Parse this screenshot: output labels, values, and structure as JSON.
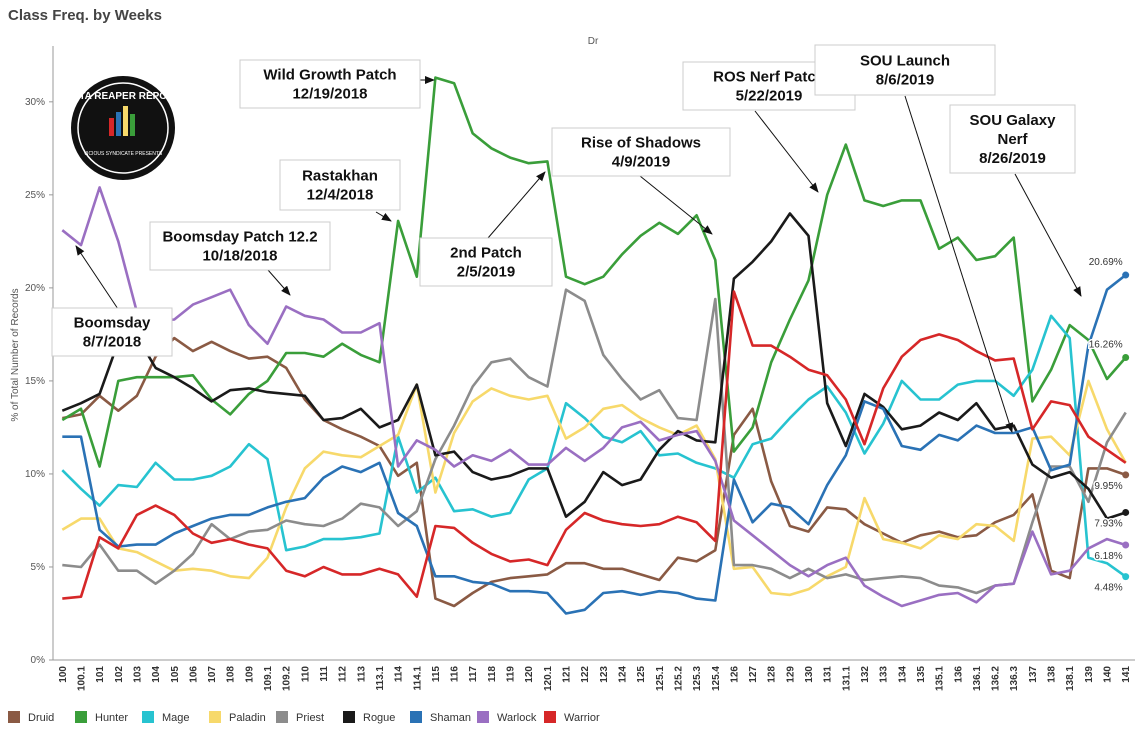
{
  "chart_data": {
    "type": "line",
    "title": "Class Freq. by Weeks",
    "column_header": "Dr",
    "y_label": "% of Total Number of Records",
    "logo_text": "DATA REAPER REPORT",
    "logo_subtext": "VICIOUS SYNDICATE PRESENTS",
    "grid": false,
    "legend": "bottom",
    "categories": [
      "100",
      "100.1",
      "101",
      "102",
      "103",
      "104",
      "105",
      "106",
      "107",
      "108",
      "109",
      "109.1",
      "109.2",
      "110",
      "111",
      "112",
      "113",
      "113.1",
      "114",
      "114.1",
      "115",
      "116",
      "117",
      "118",
      "119",
      "120",
      "120.1",
      "121",
      "122",
      "123",
      "124",
      "125",
      "125.1",
      "125.2",
      "125.3",
      "125.4",
      "126",
      "127",
      "128",
      "129",
      "130",
      "131",
      "131.1",
      "132",
      "133",
      "134",
      "135",
      "135.1",
      "136",
      "136.1",
      "136.2",
      "136.3",
      "137",
      "138",
      "138.1",
      "139",
      "140",
      "141"
    ],
    "ylim": [
      0,
      33
    ],
    "yticks": [
      {
        "value": 0,
        "label": "0%"
      },
      {
        "value": 5,
        "label": "5%"
      },
      {
        "value": 10,
        "label": "10%"
      },
      {
        "value": 15,
        "label": "15%"
      },
      {
        "value": 20,
        "label": "20%"
      },
      {
        "value": 25,
        "label": "25%"
      },
      {
        "value": 30,
        "label": "30%"
      }
    ],
    "annotations": [
      {
        "lines": [
          "Wild Growth Patch",
          "12/19/2018"
        ]
      },
      {
        "lines": [
          "Boomsday Patch 12.2",
          "10/18/2018"
        ]
      },
      {
        "lines": [
          "Rastakhan",
          "12/4/2018"
        ]
      },
      {
        "lines": [
          "Boomsday",
          "8/7/2018"
        ]
      },
      {
        "lines": [
          "2nd Patch",
          "2/5/2019"
        ]
      },
      {
        "lines": [
          "Rise of Shadows",
          "4/9/2019"
        ]
      },
      {
        "lines": [
          "ROS Nerf Patch",
          "5/22/2019"
        ]
      },
      {
        "lines": [
          "SOU Launch",
          "8/6/2019"
        ]
      },
      {
        "lines": [
          "SOU Galaxy",
          "Nerf",
          "8/26/2019"
        ]
      }
    ],
    "series": [
      {
        "name": "Druid",
        "color": "#8a5a44",
        "values": [
          13.0,
          13.2,
          14.2,
          13.4,
          14.2,
          16.3,
          17.3,
          16.6,
          17.1,
          16.6,
          16.2,
          16.3,
          15.7,
          14.0,
          12.9,
          12.4,
          12.0,
          11.5,
          9.9,
          10.6,
          3.3,
          2.9,
          3.6,
          4.2,
          4.4,
          4.5,
          4.6,
          5.2,
          5.2,
          4.9,
          4.9,
          4.6,
          4.3,
          5.5,
          5.3,
          5.9,
          12.1,
          13.5,
          9.6,
          7.2,
          6.9,
          8.2,
          8.1,
          7.3,
          6.8,
          6.3,
          6.7,
          6.9,
          6.6,
          6.7,
          7.4,
          7.8,
          8.9,
          4.8,
          4.4,
          10.3,
          10.3,
          9.95
        ],
        "value_labels": [
          null,
          null,
          null,
          null,
          null,
          null,
          null,
          null,
          null,
          null,
          null,
          null,
          null,
          null,
          null,
          null,
          null,
          null,
          null,
          null,
          null,
          null,
          null,
          null,
          null,
          null,
          null,
          null,
          null,
          null,
          null,
          null,
          null,
          null,
          null,
          null,
          null,
          null,
          null,
          null,
          null,
          null,
          null,
          null,
          null,
          null,
          null,
          null,
          null,
          null,
          null,
          null,
          null,
          null,
          null,
          null,
          null,
          "9.95%"
        ]
      },
      {
        "name": "Hunter",
        "color": "#3a9e3a",
        "values": [
          12.9,
          13.5,
          10.4,
          15.0,
          15.2,
          15.2,
          15.2,
          15.3,
          14.0,
          13.2,
          14.3,
          15.0,
          16.5,
          16.5,
          16.3,
          17.0,
          16.4,
          16.0,
          23.6,
          20.6,
          31.3,
          31.0,
          28.3,
          27.5,
          27.0,
          26.7,
          26.8,
          20.6,
          20.2,
          20.6,
          21.8,
          22.8,
          23.5,
          22.9,
          23.9,
          21.5,
          11.2,
          12.5,
          16.0,
          18.3,
          20.4,
          25.0,
          27.7,
          24.7,
          24.4,
          24.7,
          24.7,
          22.1,
          22.7,
          21.5,
          21.7,
          22.7,
          13.9,
          15.6,
          18.0,
          17.2,
          15.1,
          16.26
        ],
        "value_labels": [
          null,
          null,
          null,
          null,
          null,
          null,
          null,
          null,
          null,
          null,
          null,
          null,
          null,
          null,
          null,
          null,
          null,
          null,
          null,
          null,
          null,
          null,
          null,
          null,
          null,
          null,
          null,
          null,
          null,
          null,
          null,
          null,
          null,
          null,
          null,
          null,
          null,
          null,
          null,
          null,
          null,
          null,
          null,
          null,
          null,
          null,
          null,
          null,
          null,
          null,
          null,
          null,
          null,
          null,
          null,
          null,
          null,
          "16.26%"
        ]
      },
      {
        "name": "Mage",
        "color": "#27c3d0",
        "values": [
          10.2,
          9.2,
          8.3,
          9.4,
          9.3,
          10.6,
          9.7,
          9.7,
          9.9,
          10.4,
          11.6,
          10.8,
          5.9,
          6.1,
          6.5,
          6.5,
          6.6,
          6.8,
          12.0,
          9.0,
          9.8,
          8.0,
          8.1,
          7.7,
          7.9,
          9.7,
          10.3,
          13.8,
          13.0,
          12.0,
          11.7,
          12.3,
          11.0,
          11.1,
          10.6,
          10.3,
          9.8,
          11.6,
          11.9,
          13.0,
          14.0,
          14.7,
          13.3,
          11.1,
          12.7,
          15.0,
          14.0,
          14.0,
          14.8,
          15.0,
          15.0,
          14.2,
          15.6,
          18.5,
          17.3,
          5.5,
          5.2,
          4.48
        ],
        "value_labels": [
          null,
          null,
          null,
          null,
          null,
          null,
          null,
          null,
          null,
          null,
          null,
          null,
          null,
          null,
          null,
          null,
          null,
          null,
          null,
          null,
          null,
          null,
          null,
          null,
          null,
          null,
          null,
          null,
          null,
          null,
          null,
          null,
          null,
          null,
          null,
          null,
          null,
          null,
          null,
          null,
          null,
          null,
          null,
          null,
          null,
          null,
          null,
          null,
          null,
          null,
          null,
          null,
          null,
          null,
          null,
          null,
          null,
          "4.48%"
        ]
      },
      {
        "name": "Paladin",
        "color": "#f7d96b",
        "values": [
          7.0,
          7.6,
          7.6,
          6.0,
          5.8,
          5.3,
          4.8,
          4.9,
          4.8,
          4.5,
          4.4,
          5.5,
          8.2,
          10.3,
          11.2,
          11.0,
          10.9,
          11.5,
          12.1,
          14.8,
          9.0,
          12.2,
          13.9,
          14.6,
          14.2,
          14.0,
          14.2,
          11.9,
          12.5,
          13.5,
          13.7,
          13.0,
          12.5,
          12.1,
          12.6,
          10.8,
          4.9,
          5.0,
          3.6,
          3.5,
          3.8,
          4.5,
          5.0,
          8.7,
          6.5,
          6.3,
          6.0,
          6.7,
          6.5,
          7.3,
          7.2,
          6.4,
          11.9,
          12.0,
          11.0,
          15.0,
          12.4,
          10.6
        ]
      },
      {
        "name": "Priest",
        "color": "#8c8c8c",
        "values": [
          5.1,
          5.0,
          6.2,
          4.8,
          4.8,
          4.1,
          4.8,
          5.7,
          7.3,
          6.5,
          6.9,
          7.0,
          7.5,
          7.3,
          7.2,
          7.6,
          8.4,
          8.2,
          7.2,
          8.0,
          10.8,
          12.6,
          14.7,
          16.0,
          16.2,
          15.2,
          14.7,
          19.9,
          19.3,
          16.4,
          15.1,
          14.0,
          14.5,
          13.0,
          12.9,
          19.4,
          5.1,
          5.1,
          4.9,
          4.4,
          4.9,
          4.4,
          4.6,
          4.3,
          4.4,
          4.5,
          4.4,
          4.0,
          3.9,
          3.6,
          4.0,
          4.1,
          7.4,
          10.4,
          10.4,
          8.5,
          11.7,
          13.3
        ]
      },
      {
        "name": "Rogue",
        "color": "#1a1a1a",
        "values": [
          13.4,
          13.8,
          14.3,
          17.1,
          17.4,
          15.7,
          15.2,
          14.6,
          13.9,
          14.5,
          14.6,
          14.4,
          14.3,
          14.2,
          12.9,
          13.0,
          13.5,
          12.5,
          12.9,
          14.8,
          11.0,
          11.2,
          10.1,
          9.7,
          9.9,
          10.3,
          10.3,
          7.7,
          8.5,
          10.1,
          9.4,
          9.7,
          11.3,
          12.3,
          11.8,
          11.7,
          20.5,
          21.4,
          22.5,
          24.0,
          22.8,
          13.8,
          11.5,
          14.3,
          13.6,
          12.4,
          12.6,
          13.3,
          12.9,
          13.8,
          12.4,
          12.6,
          10.5,
          9.8,
          10.1,
          9.2,
          7.6,
          7.93
        ],
        "value_labels": [
          null,
          null,
          null,
          null,
          null,
          null,
          null,
          null,
          null,
          null,
          null,
          null,
          null,
          null,
          null,
          null,
          null,
          null,
          null,
          null,
          null,
          null,
          null,
          null,
          null,
          null,
          null,
          null,
          null,
          null,
          null,
          null,
          null,
          null,
          null,
          null,
          null,
          null,
          null,
          null,
          null,
          null,
          null,
          null,
          null,
          null,
          null,
          null,
          null,
          null,
          null,
          null,
          null,
          null,
          null,
          null,
          null,
          "7.93%"
        ]
      },
      {
        "name": "Shaman",
        "color": "#2a72b5",
        "values": [
          12.0,
          12.0,
          7.0,
          6.1,
          6.2,
          6.2,
          6.8,
          7.2,
          7.6,
          7.8,
          7.8,
          8.2,
          8.5,
          8.7,
          9.8,
          10.4,
          10.1,
          10.6,
          7.9,
          7.2,
          4.5,
          4.5,
          4.2,
          4.1,
          3.7,
          3.7,
          3.6,
          2.5,
          2.7,
          3.6,
          3.7,
          3.5,
          3.7,
          3.6,
          3.3,
          3.2,
          9.7,
          7.4,
          8.4,
          8.2,
          7.3,
          9.4,
          11.0,
          13.9,
          13.5,
          11.5,
          11.3,
          12.1,
          11.8,
          12.6,
          12.2,
          12.2,
          12.5,
          10.2,
          10.5,
          16.9,
          19.9,
          20.69
        ],
        "value_labels": [
          null,
          null,
          null,
          null,
          null,
          null,
          null,
          null,
          null,
          null,
          null,
          null,
          null,
          null,
          null,
          null,
          null,
          null,
          null,
          null,
          null,
          null,
          null,
          null,
          null,
          null,
          null,
          null,
          null,
          null,
          null,
          null,
          null,
          null,
          null,
          null,
          null,
          null,
          null,
          null,
          null,
          null,
          null,
          null,
          null,
          null,
          null,
          null,
          null,
          null,
          null,
          null,
          null,
          null,
          null,
          null,
          null,
          "20.69%"
        ]
      },
      {
        "name": "Warlock",
        "color": "#9a6fc2",
        "values": [
          23.1,
          22.3,
          25.4,
          22.5,
          18.7,
          18.2,
          18.3,
          19.1,
          19.5,
          19.9,
          18.0,
          17.0,
          19.0,
          18.5,
          18.3,
          17.6,
          17.6,
          18.1,
          10.4,
          11.8,
          11.3,
          10.4,
          11.0,
          10.7,
          11.3,
          10.5,
          10.5,
          11.4,
          10.7,
          11.4,
          12.5,
          12.8,
          11.8,
          12.1,
          12.3,
          10.7,
          7.5,
          6.7,
          5.9,
          5.1,
          4.5,
          5.1,
          5.5,
          4.0,
          3.4,
          2.9,
          3.2,
          3.5,
          3.6,
          3.1,
          4.0,
          4.1,
          6.9,
          4.6,
          4.8,
          6.0,
          6.5,
          6.18
        ],
        "value_labels": [
          null,
          null,
          null,
          null,
          null,
          null,
          null,
          null,
          null,
          null,
          null,
          null,
          null,
          null,
          null,
          null,
          null,
          null,
          null,
          null,
          null,
          null,
          null,
          null,
          null,
          null,
          null,
          null,
          null,
          null,
          null,
          null,
          null,
          null,
          null,
          null,
          null,
          null,
          null,
          null,
          null,
          null,
          null,
          null,
          null,
          null,
          null,
          null,
          null,
          null,
          null,
          null,
          null,
          null,
          null,
          null,
          null,
          "6.18%"
        ]
      },
      {
        "name": "Warrior",
        "color": "#d62728",
        "values": [
          3.3,
          3.4,
          6.6,
          6.0,
          7.8,
          8.3,
          7.8,
          6.8,
          6.3,
          6.5,
          6.2,
          6.0,
          4.8,
          4.5,
          5.0,
          4.6,
          4.6,
          4.9,
          4.6,
          3.4,
          7.2,
          7.1,
          6.3,
          5.7,
          5.3,
          5.4,
          5.1,
          7.0,
          7.9,
          7.5,
          7.3,
          7.2,
          7.3,
          7.7,
          7.4,
          6.4,
          19.8,
          16.9,
          16.9,
          16.3,
          15.6,
          15.3,
          14.0,
          11.6,
          14.6,
          16.3,
          17.2,
          17.5,
          17.2,
          16.6,
          16.1,
          16.2,
          12.4,
          13.9,
          13.7,
          12.0,
          11.3,
          10.6
        ]
      }
    ]
  }
}
